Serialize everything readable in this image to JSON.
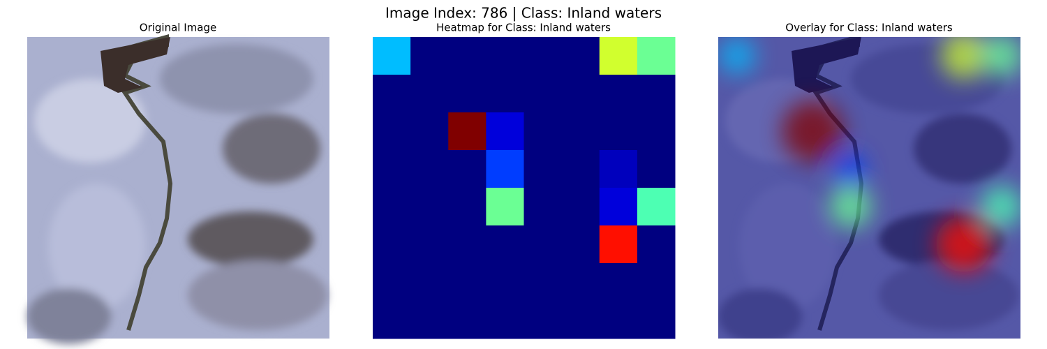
{
  "title": "Image Index: 786 | Class: Inland waters",
  "panels": {
    "original": {
      "title": "Original Image"
    },
    "overlay": {
      "title": "Overlay for Class: Inland waters"
    }
  },
  "chart_data": {
    "type": "heatmap",
    "title": "Heatmap for Class: Inland waters",
    "colormap": "jet",
    "vlim": [
      0,
      1
    ],
    "values": [
      [
        0.31,
        0,
        0,
        0,
        0,
        0,
        0.58,
        0.48
      ],
      [
        0,
        0,
        0,
        0,
        0,
        0,
        0,
        0
      ],
      [
        0,
        0,
        1.0,
        0.09,
        0,
        0,
        0,
        0
      ],
      [
        0,
        0,
        0,
        0.185,
        0,
        0,
        0.06,
        0
      ],
      [
        0,
        0,
        0,
        0.48,
        0,
        0,
        0.09,
        0.45
      ],
      [
        0,
        0,
        0,
        0,
        0,
        0,
        0.86,
        0
      ],
      [
        0,
        0,
        0,
        0,
        0,
        0,
        0,
        0
      ],
      [
        0,
        0,
        0,
        0,
        0,
        0,
        0,
        0
      ]
    ]
  }
}
